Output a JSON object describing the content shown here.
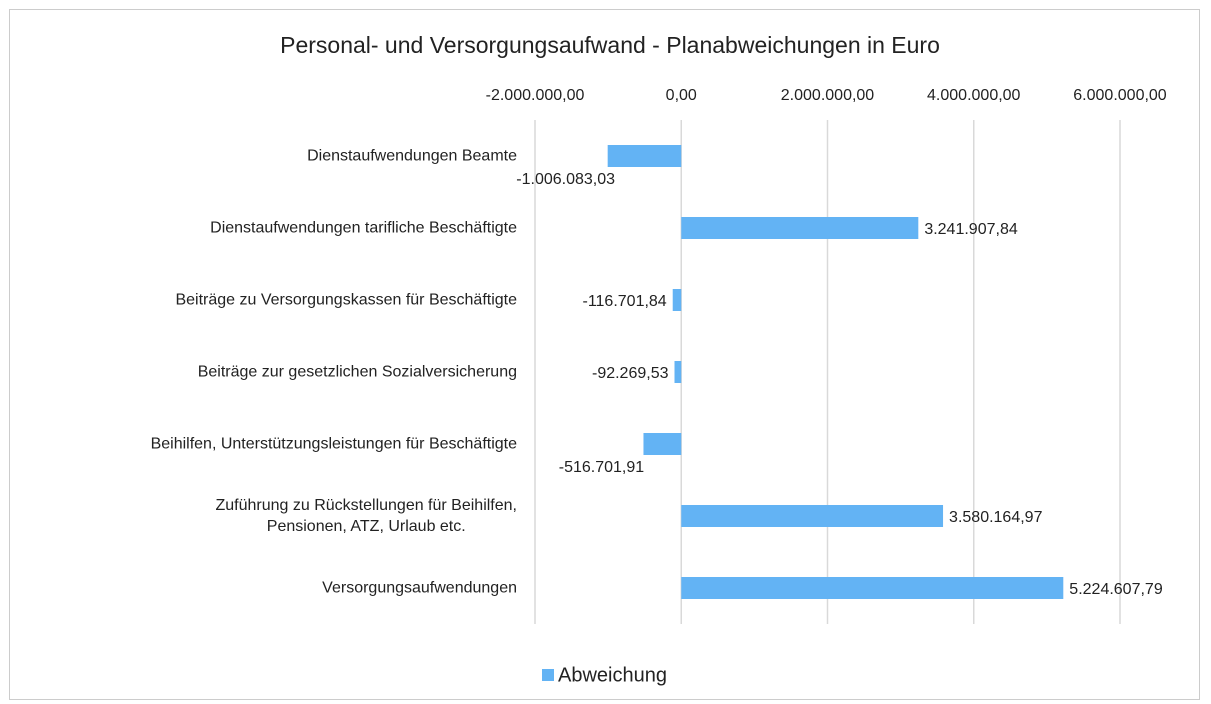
{
  "chart_data": {
    "type": "bar",
    "orientation": "horizontal",
    "title": "Personal- und Versorgungsaufwand - Planabweichungen in Euro",
    "categories": [
      "Dienstaufwendungen Beamte",
      "Dienstaufwendungen tarifliche Beschäftigte",
      "Beiträge zu Versorgungskassen für Beschäftigte",
      "Beiträge zur gesetzlichen Sozialversicherung",
      "Beihilfen, Unterstützungsleistungen für Beschäftigte",
      "Zuführung zu Rückstellungen für Beihilfen,\nPensionen, ATZ, Urlaub etc.",
      "Versorgungsaufwendungen"
    ],
    "series": [
      {
        "name": "Abweichung",
        "color": "#63b3f4",
        "values": [
          -1006083.03,
          3241907.84,
          -116701.84,
          -92269.53,
          -516701.91,
          3580164.97,
          5224607.79
        ],
        "value_labels": [
          "-1.006.083,03",
          "3.241.907,84",
          "-116.701,84",
          "-92.269,53",
          "-516.701,91",
          "3.580.164,97",
          "5.224.607,79"
        ]
      }
    ],
    "xlim": [
      -2000000,
      6000000
    ],
    "xticks": [
      {
        "value": -2000000,
        "label": "-2.000.000,00"
      },
      {
        "value": 0,
        "label": "0,00"
      },
      {
        "value": 2000000,
        "label": "2.000.000,00"
      },
      {
        "value": 4000000,
        "label": "4.000.000,00"
      },
      {
        "value": 6000000,
        "label": "6.000.000,00"
      }
    ],
    "grid": true,
    "legend": "bottom"
  }
}
